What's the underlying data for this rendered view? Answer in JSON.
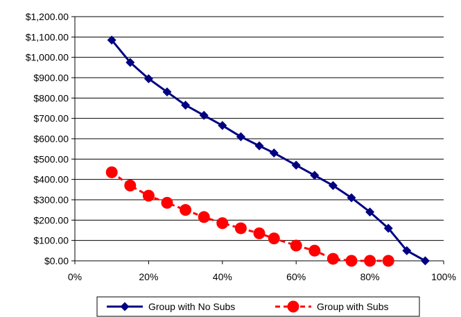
{
  "chart_data": {
    "type": "line",
    "title": "",
    "xlabel": "",
    "ylabel": "",
    "xlim": [
      0,
      100
    ],
    "ylim": [
      0,
      1200
    ],
    "x_tick_labels": [
      "0%",
      "20%",
      "40%",
      "60%",
      "80%",
      "100%"
    ],
    "y_tick_labels": [
      "$0.00",
      "$100.00",
      "$200.00",
      "$300.00",
      "$400.00",
      "$500.00",
      "$600.00",
      "$700.00",
      "$800.00",
      "$900.00",
      "$1,000.00",
      "$1,100.00",
      "$1,200.00"
    ],
    "grid": "horizontal",
    "legend_position": "bottom",
    "series": [
      {
        "name": "Group with No Subs",
        "color": "#000080",
        "marker": "diamond",
        "line_style": "solid",
        "x": [
          10,
          15,
          20,
          25,
          30,
          35,
          40,
          45,
          50,
          54,
          60,
          65,
          70,
          75,
          80,
          85,
          90,
          95
        ],
        "values": [
          1085,
          975,
          895,
          830,
          765,
          715,
          665,
          610,
          565,
          530,
          470,
          420,
          370,
          310,
          240,
          160,
          50,
          0
        ]
      },
      {
        "name": "Group with Subs",
        "color": "#ff0000",
        "marker": "circle",
        "line_style": "dashed",
        "x": [
          10,
          15,
          20,
          25,
          30,
          35,
          40,
          45,
          50,
          54,
          60,
          65,
          70,
          75,
          80,
          85
        ],
        "values": [
          435,
          370,
          320,
          285,
          250,
          215,
          185,
          160,
          135,
          110,
          75,
          50,
          10,
          0,
          0,
          0
        ]
      }
    ]
  }
}
